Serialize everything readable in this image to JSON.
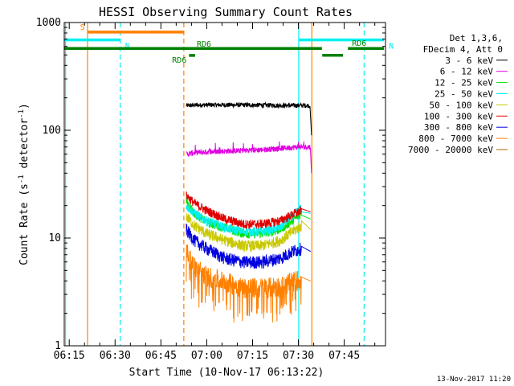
{
  "chart_data": {
    "type": "line",
    "title": "HESSI Observing Summary Count Rates",
    "xlabel": "Start Time (10-Nov-17 06:13:22)",
    "ylabel_main": "Count Rate (s",
    "ylabel_sup1": "-1",
    "ylabel_mid": " detector",
    "ylabel_sup2": "-1",
    "ylabel_end": ")",
    "yscale": "log",
    "xlim_min": [
      13.37,
      118.5
    ],
    "ylim": [
      1,
      1000
    ],
    "xticks": [
      {
        "label": "06:15",
        "min": 15
      },
      {
        "label": "06:30",
        "min": 30
      },
      {
        "label": "06:45",
        "min": 45
      },
      {
        "label": "07:00",
        "min": 60
      },
      {
        "label": "07:15",
        "min": 75
      },
      {
        "label": "07:30",
        "min": 90
      },
      {
        "label": "07:45",
        "min": 105
      }
    ],
    "yticks": [
      {
        "label": "1",
        "v": 1
      },
      {
        "label": "10",
        "v": 10
      },
      {
        "label": "100",
        "v": 100
      },
      {
        "label": "1000",
        "v": 1000
      }
    ],
    "legend_header": [
      "Det 1,3,6,",
      "FDecim 4, Att 0"
    ],
    "legend_position": "right",
    "series": [
      {
        "name": "3 - 6 keV",
        "color": "#000000",
        "x": [
          53.3,
          60,
          70,
          80,
          85,
          89.9,
          93.8,
          94.3
        ],
        "y": [
          170,
          172,
          172,
          171,
          170,
          170,
          170,
          90
        ]
      },
      {
        "name": "6 - 12 keV",
        "color": "#e000e0",
        "x": [
          53.3,
          56,
          60,
          66,
          72,
          78,
          84,
          90,
          94,
          94.3
        ],
        "y": [
          60,
          62,
          63,
          64,
          65,
          66,
          68,
          70,
          70,
          40
        ]
      },
      {
        "name": "12 - 25 keV",
        "color": "#00e000",
        "x": [
          53.3,
          56,
          60,
          66,
          72,
          78,
          84,
          88,
          91,
          94
        ],
        "y": [
          22,
          17,
          14,
          12.5,
          11,
          11,
          12,
          14.5,
          17,
          15
        ]
      },
      {
        "name": "25 - 50 keV",
        "color": "#00f0f0",
        "x": [
          53.3,
          56,
          60,
          66,
          72,
          78,
          84,
          88,
          91,
          94
        ],
        "y": [
          20,
          17,
          14.5,
          12.5,
          11.5,
          11.5,
          12.5,
          16,
          19,
          17
        ]
      },
      {
        "name": "50 - 100 keV",
        "color": "#c8c800",
        "x": [
          53.3,
          56,
          60,
          66,
          72,
          78,
          84,
          88,
          91,
          94
        ],
        "y": [
          16,
          13,
          11,
          9.5,
          8.5,
          8.5,
          9.5,
          11.5,
          13,
          12
        ]
      },
      {
        "name": "100 - 300 keV",
        "color": "#e00000",
        "x": [
          53.3,
          56,
          60,
          66,
          72,
          78,
          84,
          88,
          91,
          94
        ],
        "y": [
          25,
          21,
          18,
          15,
          13.5,
          13.5,
          14.5,
          16.5,
          18,
          17.5
        ]
      },
      {
        "name": "300 - 800 keV",
        "color": "#0000e0",
        "x": [
          53.3,
          56,
          60,
          66,
          72,
          78,
          84,
          88,
          91,
          94
        ],
        "y": [
          12,
          9.5,
          8,
          6.5,
          6,
          6,
          6.5,
          7.5,
          8,
          7.5
        ]
      },
      {
        "name": "800 - 7000 keV",
        "color": "#ff8000",
        "x": [
          53.3,
          56,
          60,
          66,
          72,
          78,
          84,
          88,
          91,
          94
        ],
        "y": [
          7.5,
          5.5,
          4.5,
          4,
          3.5,
          3.5,
          3.6,
          4,
          4.2,
          4
        ]
      },
      {
        "name": "7000 - 20000 keV",
        "color": "#b06800",
        "x": [],
        "y": []
      }
    ],
    "flags": [
      {
        "label": "S",
        "color": "#ff8000",
        "start": 20.9,
        "end": 52.5,
        "y_level": 816
      },
      {
        "label": "N",
        "color": "#00f0f0",
        "start": 13.5,
        "end": 31.7,
        "y_level": 690
      },
      {
        "label": "N",
        "color": "#00f0f0",
        "start": 90.1,
        "end": 118.0,
        "y_level": 690
      },
      {
        "label": "RD6",
        "color": "#008000",
        "start": 13.5,
        "end": 97.7,
        "y_level": 575
      },
      {
        "label": "RD6",
        "color": "#008000",
        "start": 106.2,
        "end": 118.0,
        "y_level": 575
      },
      {
        "label": "RD6",
        "color": "#008000",
        "start": 54.2,
        "end": 56.2,
        "y_level": 495
      },
      {
        "label": "",
        "color": "#008000",
        "start": 97.8,
        "end": 104.6,
        "y_level": 497
      }
    ],
    "vlines": [
      {
        "min": 13.8,
        "color": "#00f0f0",
        "dash": false
      },
      {
        "min": 21.0,
        "color": "#ff8000",
        "dash": false
      },
      {
        "min": 31.7,
        "color": "#00f0f0",
        "dash": true
      },
      {
        "min": 52.5,
        "color": "#ff8000",
        "dash": true
      },
      {
        "min": 90.1,
        "color": "#00f0f0",
        "dash": false
      },
      {
        "min": 94.4,
        "color": "#ff8000",
        "dash": false
      },
      {
        "min": 111.5,
        "color": "#00f0f0",
        "dash": true
      }
    ],
    "grid": false
  },
  "footer_date": "13-Nov-2017 11:20"
}
